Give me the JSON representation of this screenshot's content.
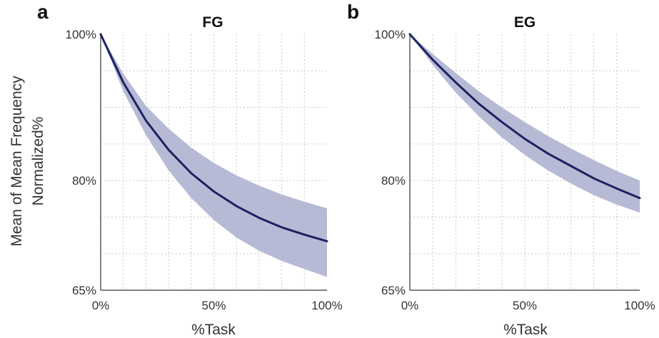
{
  "ylabel_line1": "Mean of Mean Frequency",
  "ylabel_line2": "Normalized%",
  "chart_data": [
    {
      "type": "line",
      "panel_letter": "a",
      "title": "FG",
      "xlabel": "%Task",
      "ylabel": "Mean of Mean Frequency Normalized%",
      "xlim": [
        0,
        100
      ],
      "ylim": [
        65,
        100
      ],
      "x_ticks": [
        0,
        50,
        100
      ],
      "x_tick_labels": [
        "0%",
        "50%",
        "100%"
      ],
      "y_ticks": [
        65,
        80,
        100
      ],
      "y_tick_labels": [
        "65%",
        "80%",
        "100%"
      ],
      "grid": true,
      "series": [
        {
          "x": [
            0,
            10,
            20,
            30,
            40,
            50,
            60,
            70,
            80,
            90,
            100
          ],
          "y": [
            100,
            93.4,
            88.2,
            84.2,
            81.0,
            78.5,
            76.5,
            74.9,
            73.6,
            72.6,
            71.7
          ],
          "band_lower": [
            100,
            92.2,
            86.2,
            81.4,
            77.6,
            74.6,
            72.2,
            70.4,
            69.0,
            67.9,
            66.8
          ],
          "band_upper": [
            100,
            94.6,
            90.2,
            87.1,
            84.5,
            82.4,
            80.7,
            79.3,
            78.1,
            77.1,
            76.2
          ],
          "line_color": "#1c2260",
          "band_color": "#b3b6d3"
        }
      ]
    },
    {
      "type": "line",
      "panel_letter": "b",
      "title": "EG",
      "xlabel": "%Task",
      "xlim": [
        0,
        100
      ],
      "ylim": [
        65,
        100
      ],
      "x_ticks": [
        0,
        50,
        100
      ],
      "x_tick_labels": [
        "0%",
        "50%",
        "100%"
      ],
      "y_ticks": [
        65,
        80,
        100
      ],
      "y_tick_labels": [
        "65%",
        "80%",
        "100%"
      ],
      "grid": true,
      "series": [
        {
          "x": [
            0,
            10,
            20,
            30,
            40,
            50,
            60,
            70,
            80,
            90,
            100
          ],
          "y": [
            100,
            96.5,
            93.4,
            90.5,
            88.0,
            85.7,
            83.7,
            82.0,
            80.3,
            78.9,
            77.6
          ],
          "band_lower": [
            100,
            95.8,
            92.0,
            88.8,
            85.9,
            83.5,
            81.4,
            79.6,
            78.0,
            76.7,
            75.6
          ],
          "band_upper": [
            100,
            97.3,
            94.7,
            92.2,
            90.0,
            88.0,
            86.1,
            84.4,
            82.8,
            81.3,
            80.0
          ],
          "line_color": "#1c2260",
          "band_color": "#b3b6d3"
        }
      ]
    }
  ]
}
